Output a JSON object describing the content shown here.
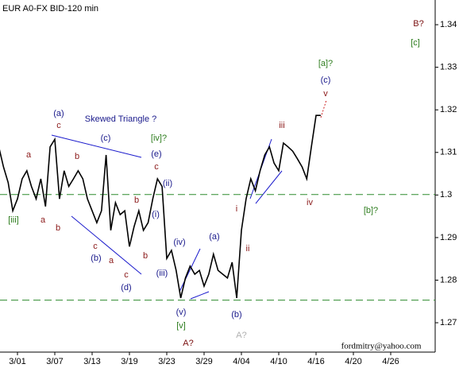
{
  "chart_data": {
    "type": "line",
    "title": "EUR A0-FX BID-120 min",
    "categories": [
      null,
      null,
      null,
      null,
      "3/01",
      null,
      null,
      null,
      null,
      null,
      null,
      null,
      "3/07",
      null,
      null,
      null,
      null,
      null,
      null,
      null,
      "3/13",
      null,
      null,
      null,
      null,
      null,
      null,
      null,
      "3/19",
      null,
      null,
      null,
      null,
      null,
      null,
      null,
      "3/23",
      null,
      null,
      null,
      null,
      null,
      null,
      null,
      "3/29",
      null,
      null,
      null,
      null,
      null,
      null,
      null,
      "4/04",
      null,
      null,
      null,
      null,
      null,
      null,
      null,
      "4/10",
      null,
      null,
      null,
      null,
      null,
      null,
      null,
      "4/16",
      null,
      null,
      null,
      null,
      null,
      null,
      null,
      "4/20",
      null,
      null,
      null,
      null,
      null,
      null,
      null,
      "4/26",
      null,
      null,
      null,
      null,
      null,
      null,
      null,
      null,
      null
    ],
    "series": [
      {
        "color": "#000000",
        "values": [
          1.3113,
          1.3066,
          1.3029,
          1.2963,
          1.2991,
          1.3038,
          1.3057,
          1.302,
          1.2991,
          1.3038,
          1.2973,
          1.3113,
          1.3131,
          1.2991,
          1.3057,
          1.302,
          1.3038,
          1.3057,
          1.3038,
          1.2991,
          1.2963,
          1.2935,
          1.2963,
          1.3094,
          1.2917,
          1.2982,
          1.2954,
          1.2963,
          1.2879,
          1.2926,
          1.2963,
          1.2917,
          1.2935,
          1.2991,
          1.3038,
          1.302,
          1.2851,
          1.287,
          1.2823,
          1.2758,
          1.2805,
          1.2833,
          1.2814,
          1.2823,
          1.2786,
          1.2814,
          1.2861,
          1.2823,
          1.2814,
          1.2805,
          1.2842,
          1.2758,
          1.2917,
          1.2991,
          1.3038,
          1.301,
          1.3057,
          1.3094,
          1.3113,
          1.3075,
          1.3057,
          1.3122,
          1.3113,
          1.3103,
          1.3085,
          1.3066,
          1.3038,
          1.3113,
          1.3187,
          1.3187,
          null,
          null,
          null,
          null,
          null,
          null,
          null,
          null,
          null,
          null,
          null,
          null,
          null,
          null,
          null,
          null,
          null,
          null,
          null,
          null,
          null,
          null,
          null,
          null
        ]
      }
    ],
    "ylim": [
      1.2631,
      1.3458
    ],
    "yticks": [
      1.27,
      1.28,
      1.29,
      1.3,
      1.31,
      1.32,
      1.33,
      1.34
    ],
    "levels": [
      1.3001,
      1.2753
    ],
    "annotations": [
      {
        "text": "(a)",
        "color": "#1a1a8c"
      },
      {
        "text": "c",
        "color": "#8b1a1a"
      },
      {
        "text": "Skewed Triangle ?",
        "color": "#1a1a8c"
      },
      {
        "text": "(c)",
        "color": "#1a1a8c"
      },
      {
        "text": "[iv]?",
        "color": "#2e7d1e"
      },
      {
        "text": "(e)",
        "color": "#1a1a8c"
      },
      {
        "text": "c",
        "color": "#8b1a1a"
      },
      {
        "text": "(ii)",
        "color": "#1a1a8c"
      },
      {
        "text": "b",
        "color": "#8b1a1a"
      },
      {
        "text": "(i)",
        "color": "#1a1a8c"
      },
      {
        "text": "a",
        "color": "#8b1a1a"
      },
      {
        "text": "b",
        "color": "#8b1a1a"
      },
      {
        "text": "a",
        "color": "#8b1a1a"
      },
      {
        "text": "b",
        "color": "#8b1a1a"
      },
      {
        "text": "c",
        "color": "#8b1a1a"
      },
      {
        "text": "(b)",
        "color": "#1a1a8c"
      },
      {
        "text": "a",
        "color": "#8b1a1a"
      },
      {
        "text": "b",
        "color": "#8b1a1a"
      },
      {
        "text": "c",
        "color": "#8b1a1a"
      },
      {
        "text": "(d)",
        "color": "#1a1a8c"
      },
      {
        "text": "[iii]",
        "color": "#2e7d1e"
      },
      {
        "text": "(iv)",
        "color": "#1a1a8c"
      },
      {
        "text": "(iii)",
        "color": "#1a1a8c"
      },
      {
        "text": "(a)",
        "color": "#1a1a8c"
      },
      {
        "text": "(v)",
        "color": "#1a1a8c"
      },
      {
        "text": "[v]",
        "color": "#2e7d1e"
      },
      {
        "text": "A?",
        "color": "#7a0f0f"
      },
      {
        "text": "(b)",
        "color": "#1a1a8c"
      },
      {
        "text": "A?",
        "color": "#b0b0b0"
      },
      {
        "text": "i",
        "color": "#8b1a1a"
      },
      {
        "text": "ii",
        "color": "#8b1a1a"
      },
      {
        "text": "iii",
        "color": "#8b1a1a"
      },
      {
        "text": "iv",
        "color": "#8b1a1a"
      },
      {
        "text": "[b]?",
        "color": "#2e7d1e"
      },
      {
        "text": "[a]?",
        "color": "#2e7d1e"
      },
      {
        "text": "(c)",
        "color": "#1a1a8c"
      },
      {
        "text": "v",
        "color": "#8b1a1a"
      },
      {
        "text": "B?",
        "color": "#7a0f0f"
      },
      {
        "text": "[c]",
        "color": "#2e7d1e"
      },
      {
        "text": "fordmitry@yahoo.com",
        "color": "#000000"
      }
    ]
  }
}
